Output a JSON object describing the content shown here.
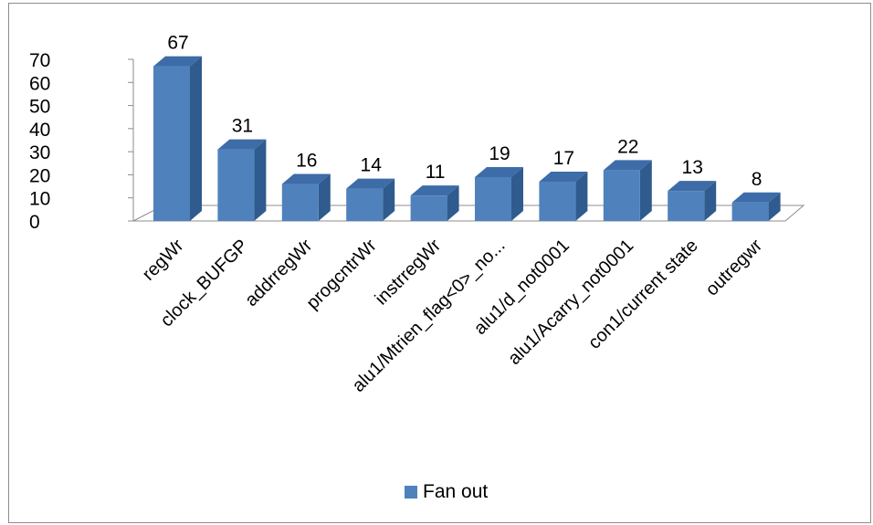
{
  "chart_data": {
    "type": "bar",
    "style": "3d-column",
    "title": "",
    "xlabel": "",
    "ylabel": "",
    "ylim": [
      0,
      70
    ],
    "yticks": [
      0,
      10,
      20,
      30,
      40,
      50,
      60,
      70
    ],
    "categories": [
      "regWr",
      "clock_BUFGP",
      "addrregWr",
      "progcntrWr",
      "instrregWr",
      "alu1/Mtrien_flag<0>_no...",
      "alu1/d_not0001",
      "alu1/Acarry_not0001",
      "con1/current state",
      "outregwr"
    ],
    "series": [
      {
        "name": "Fan out",
        "values": [
          67,
          31,
          16,
          14,
          11,
          19,
          17,
          22,
          13,
          8
        ],
        "color": "#4f81bd"
      }
    ],
    "legend": {
      "position": "bottom",
      "label": "Fan out"
    },
    "grid": false
  }
}
